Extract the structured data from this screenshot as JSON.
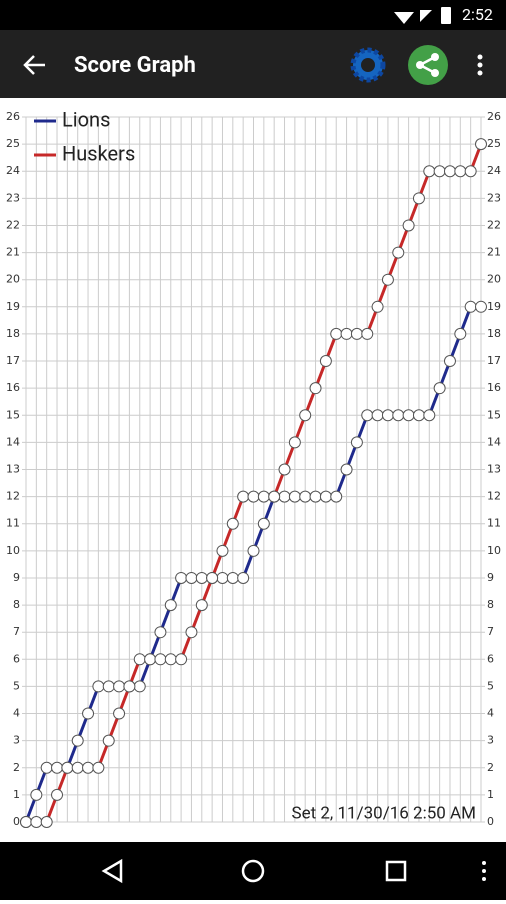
{
  "status_bar": {
    "time": "2:52"
  },
  "app_bar": {
    "title": "Score Graph"
  },
  "chart_data": {
    "type": "line",
    "x": [
      0,
      1,
      2,
      3,
      4,
      5,
      6,
      7,
      8,
      9,
      10,
      11,
      12,
      13,
      14,
      15,
      16,
      17,
      18,
      19,
      20,
      21,
      22,
      23,
      24,
      25,
      26,
      27,
      28,
      29,
      30,
      31,
      32,
      33,
      34,
      35,
      36,
      37,
      38,
      39,
      40,
      41,
      42,
      43,
      44
    ],
    "xlim": [
      0,
      44
    ],
    "series": [
      {
        "name": "Lions",
        "color": "#1f2a8c",
        "values": [
          0,
          1,
          2,
          2,
          2,
          3,
          4,
          5,
          5,
          5,
          5,
          5,
          6,
          7,
          8,
          9,
          9,
          9,
          9,
          9,
          9,
          9,
          10,
          11,
          12,
          12,
          12,
          12,
          12,
          12,
          12,
          13,
          14,
          15,
          15,
          15,
          15,
          15,
          15,
          15,
          16,
          17,
          18,
          19,
          19
        ]
      },
      {
        "name": "Huskers",
        "color": "#c62828",
        "values": [
          0,
          0,
          0,
          1,
          2,
          2,
          2,
          2,
          3,
          4,
          5,
          6,
          6,
          6,
          6,
          6,
          7,
          8,
          9,
          10,
          11,
          12,
          12,
          12,
          12,
          13,
          14,
          15,
          16,
          17,
          18,
          18,
          18,
          18,
          19,
          20,
          21,
          22,
          23,
          24,
          24,
          24,
          24,
          24,
          25
        ]
      }
    ],
    "ylim": [
      0,
      26
    ],
    "yticks": [
      0,
      1,
      2,
      3,
      4,
      5,
      6,
      7,
      8,
      9,
      10,
      11,
      12,
      13,
      14,
      15,
      16,
      17,
      18,
      19,
      20,
      21,
      22,
      23,
      24,
      25,
      26
    ],
    "grid": true,
    "legend": "upper left",
    "annotation": "Set 2, 11/30/16 2:50 AM"
  }
}
